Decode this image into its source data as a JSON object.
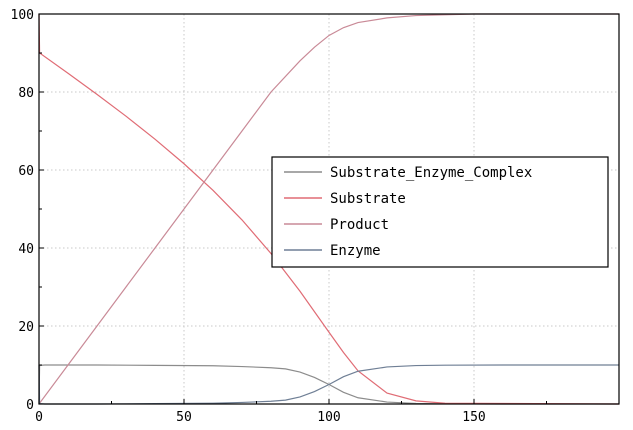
{
  "chart_data": {
    "type": "line",
    "title": "",
    "xlabel": "",
    "ylabel": "",
    "xlim": [
      0,
      200
    ],
    "ylim": [
      0,
      100
    ],
    "x_ticks": [
      0,
      50,
      100,
      150
    ],
    "y_ticks": [
      0,
      20,
      40,
      60,
      80,
      100
    ],
    "grid": true,
    "legend_position": "center-right",
    "series": [
      {
        "name": "Substrate_Enzyme_Complex",
        "color": "#8c8c8c",
        "x": [
          0,
          0.2,
          2,
          20,
          40,
          60,
          70,
          80,
          85,
          90,
          95,
          100,
          105,
          110,
          120,
          130,
          140,
          160,
          200
        ],
        "y": [
          0,
          9.9,
          10,
          10,
          9.9,
          9.8,
          9.6,
          9.3,
          9.0,
          8.2,
          6.8,
          5.0,
          3.0,
          1.6,
          0.5,
          0.15,
          0.05,
          0,
          0
        ]
      },
      {
        "name": "Substrate",
        "color": "#e06c75",
        "x": [
          0,
          0.2,
          10,
          20,
          30,
          40,
          50,
          60,
          70,
          80,
          90,
          100,
          105,
          110,
          120,
          130,
          140,
          200
        ],
        "y": [
          100,
          90,
          84.8,
          79.4,
          73.8,
          67.9,
          61.6,
          54.8,
          47.2,
          38.6,
          28.9,
          18.4,
          13.2,
          8.5,
          2.8,
          0.8,
          0.2,
          0
        ]
      },
      {
        "name": "Product",
        "color": "#c98a97",
        "x": [
          0,
          10,
          20,
          30,
          40,
          50,
          60,
          70,
          80,
          90,
          95,
          100,
          105,
          110,
          120,
          130,
          140,
          150,
          200
        ],
        "y": [
          0,
          10,
          20,
          30,
          40,
          50,
          60,
          70,
          80,
          88,
          91.5,
          94.5,
          96.5,
          97.8,
          99.0,
          99.6,
          99.8,
          100,
          100
        ]
      },
      {
        "name": "Enzyme",
        "color": "#6f7f95",
        "x": [
          0,
          0.2,
          2,
          20,
          40,
          60,
          70,
          80,
          85,
          90,
          95,
          100,
          105,
          110,
          120,
          130,
          140,
          160,
          200
        ],
        "y": [
          10,
          0.1,
          0,
          0,
          0.1,
          0.2,
          0.4,
          0.7,
          1.0,
          1.8,
          3.2,
          5.0,
          7.0,
          8.4,
          9.5,
          9.85,
          9.95,
          10,
          10
        ]
      }
    ]
  }
}
